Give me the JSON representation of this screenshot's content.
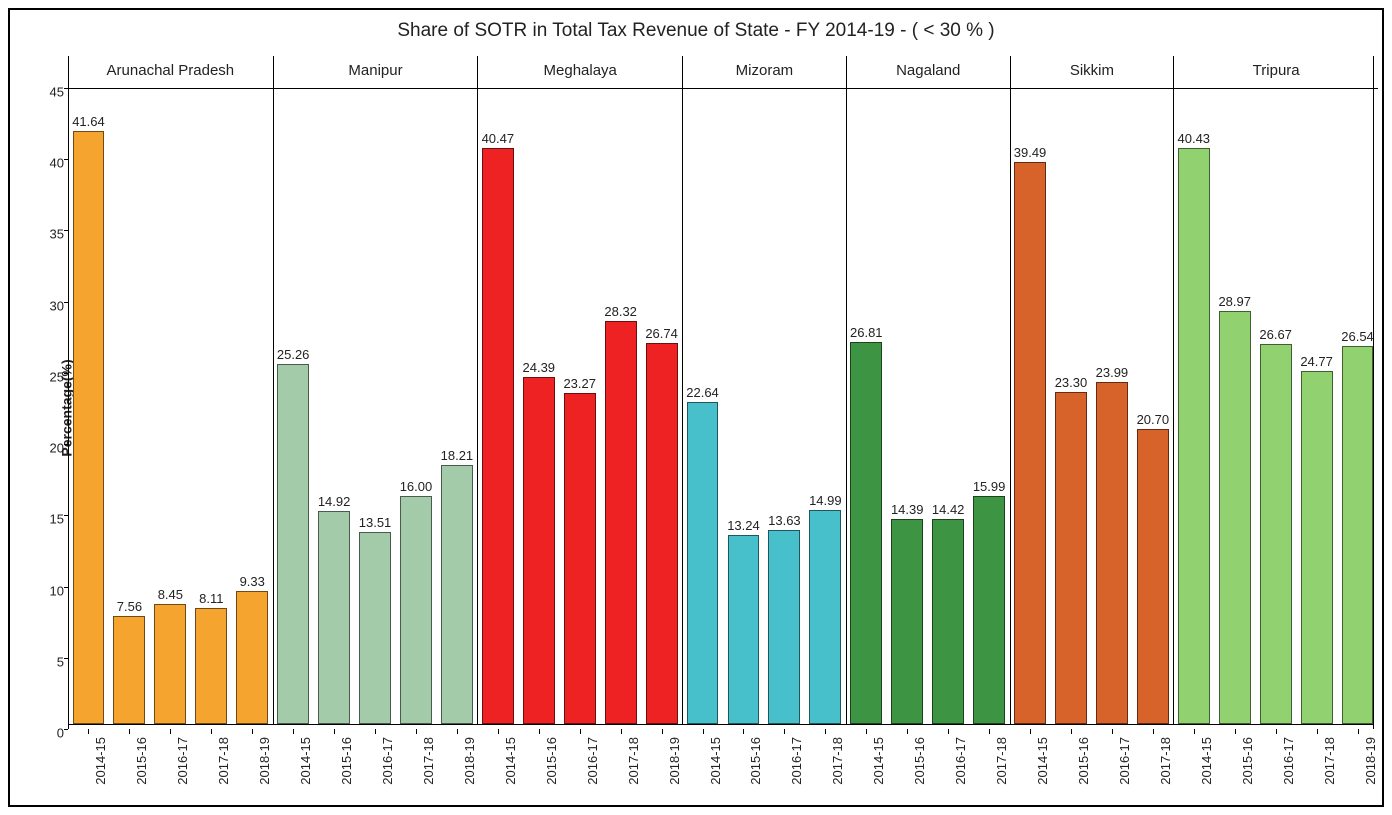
{
  "chart": {
    "type": "faceted-bar",
    "title": "Share of SOTR in Total Tax Revenue of State - FY 2014-19 - ( < 30 % )",
    "title_fontsize": 19,
    "ylabel": "Percentage(%)",
    "ylabel_fontsize": 14,
    "ylim": [
      0,
      45
    ],
    "ytick_step": 5,
    "yticks": [
      0,
      5,
      10,
      15,
      20,
      25,
      30,
      35,
      40,
      45
    ],
    "background_color": "#ffffff",
    "border_color": "#000000",
    "bar_width_ratio": 0.78,
    "bar_label_fontsize": 13,
    "axis_fontsize": 13,
    "xtick_rotation": -90,
    "facets": [
      {
        "name": "Arunachal Pradesh",
        "color": "#f5a430",
        "bars": [
          {
            "x": "2014-15",
            "y": 41.64
          },
          {
            "x": "2015-16",
            "y": 7.56
          },
          {
            "x": "2016-17",
            "y": 8.45
          },
          {
            "x": "2017-18",
            "y": 8.11
          },
          {
            "x": "2018-19",
            "y": 9.33
          }
        ]
      },
      {
        "name": "Manipur",
        "color": "#a3cbaa",
        "bars": [
          {
            "x": "2014-15",
            "y": 25.26
          },
          {
            "x": "2015-16",
            "y": 14.92
          },
          {
            "x": "2016-17",
            "y": 13.51
          },
          {
            "x": "2017-18",
            "y": 16.0
          },
          {
            "x": "2018-19",
            "y": 18.21
          }
        ]
      },
      {
        "name": "Meghalaya",
        "color": "#ee2222",
        "bars": [
          {
            "x": "2014-15",
            "y": 40.47
          },
          {
            "x": "2015-16",
            "y": 24.39
          },
          {
            "x": "2016-17",
            "y": 23.27
          },
          {
            "x": "2017-18",
            "y": 28.32
          },
          {
            "x": "2018-19",
            "y": 26.74
          }
        ]
      },
      {
        "name": "Mizoram",
        "color": "#47c0cc",
        "bars": [
          {
            "x": "2014-15",
            "y": 22.64
          },
          {
            "x": "2015-16",
            "y": 13.24
          },
          {
            "x": "2016-17",
            "y": 13.63
          },
          {
            "x": "2017-18",
            "y": 14.99
          }
        ]
      },
      {
        "name": "Nagaland",
        "color": "#3d9443",
        "bars": [
          {
            "x": "2014-15",
            "y": 26.81
          },
          {
            "x": "2015-16",
            "y": 14.39
          },
          {
            "x": "2016-17",
            "y": 14.42
          },
          {
            "x": "2017-18",
            "y": 15.99
          }
        ]
      },
      {
        "name": "Sikkim",
        "color": "#d7622a",
        "bars": [
          {
            "x": "2014-15",
            "y": 39.49
          },
          {
            "x": "2015-16",
            "y": 23.3
          },
          {
            "x": "2016-17",
            "y": 23.99
          },
          {
            "x": "2017-18",
            "y": 20.7
          }
        ]
      },
      {
        "name": "Tripura",
        "color": "#91d170",
        "bars": [
          {
            "x": "2014-15",
            "y": 40.43
          },
          {
            "x": "2015-16",
            "y": 28.97
          },
          {
            "x": "2016-17",
            "y": 26.67
          },
          {
            "x": "2017-18",
            "y": 24.77
          },
          {
            "x": "2018-19",
            "y": 26.54
          }
        ]
      }
    ]
  }
}
